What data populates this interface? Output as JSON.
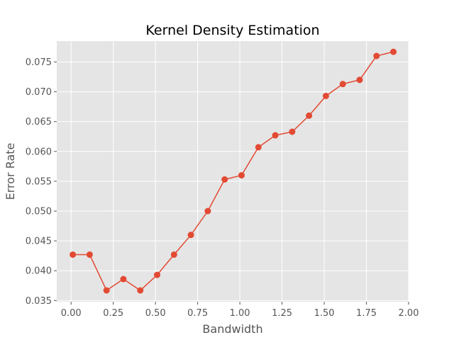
{
  "colors": {
    "plot_background": "#E5E5E5",
    "grid": "#FFFFFF",
    "line": "#E24A33",
    "tick": "#555555"
  },
  "chart_data": {
    "type": "line",
    "title": "Kernel Density Estimation",
    "xlabel": "Bandwidth",
    "ylabel": "Error Rate",
    "xlim": [
      -0.085,
      2.0
    ],
    "ylim": [
      0.0348,
      0.0785
    ],
    "grid": true,
    "marker": "circle",
    "x_ticks": [
      {
        "value": 0.0,
        "label": "0.00"
      },
      {
        "value": 0.25,
        "label": "0.25"
      },
      {
        "value": 0.5,
        "label": "0.50"
      },
      {
        "value": 0.75,
        "label": "0.75"
      },
      {
        "value": 1.0,
        "label": "1.00"
      },
      {
        "value": 1.25,
        "label": "1.25"
      },
      {
        "value": 1.5,
        "label": "1.50"
      },
      {
        "value": 1.75,
        "label": "1.75"
      },
      {
        "value": 2.0,
        "label": "2.00"
      }
    ],
    "y_ticks": [
      {
        "value": 0.035,
        "label": "0.035"
      },
      {
        "value": 0.04,
        "label": "0.040"
      },
      {
        "value": 0.045,
        "label": "0.045"
      },
      {
        "value": 0.05,
        "label": "0.050"
      },
      {
        "value": 0.055,
        "label": "0.055"
      },
      {
        "value": 0.06,
        "label": "0.060"
      },
      {
        "value": 0.065,
        "label": "0.065"
      },
      {
        "value": 0.07,
        "label": "0.070"
      },
      {
        "value": 0.075,
        "label": "0.075"
      }
    ],
    "series": [
      {
        "x": [
          0.01,
          0.11,
          0.21,
          0.31,
          0.41,
          0.51,
          0.61,
          0.71,
          0.81,
          0.91,
          1.01,
          1.11,
          1.21,
          1.31,
          1.41,
          1.51,
          1.61,
          1.71,
          1.81,
          1.91
        ],
        "y": [
          0.0427,
          0.0427,
          0.0367,
          0.0386,
          0.0367,
          0.0393,
          0.0427,
          0.046,
          0.05,
          0.0553,
          0.056,
          0.0607,
          0.0627,
          0.0633,
          0.066,
          0.0693,
          0.0713,
          0.072,
          0.076,
          0.0767
        ]
      }
    ]
  }
}
